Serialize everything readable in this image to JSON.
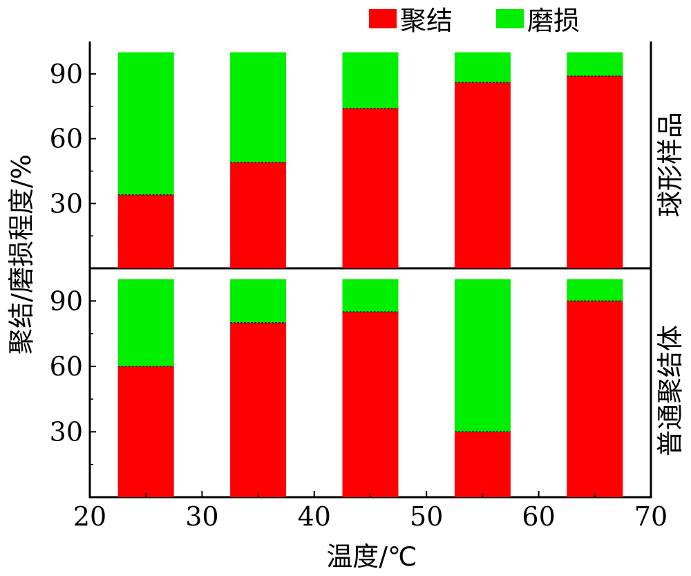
{
  "chart_data": {
    "type": "bar",
    "stacked": true,
    "xlabel": "温度/℃",
    "ylabel": "聚结/磨损程度/%",
    "xlim": [
      20,
      70
    ],
    "x_ticks": [
      "20",
      "30",
      "40",
      "50",
      "60",
      "70"
    ],
    "ylim": [
      0,
      105
    ],
    "y_ticks": [
      "30",
      "60",
      "90"
    ],
    "categories": [
      25,
      35,
      45,
      55,
      65
    ],
    "legend": {
      "position": "top",
      "entries": [
        {
          "name": "聚结",
          "color": "#ff0000"
        },
        {
          "name": "磨损",
          "color": "#00ee00"
        }
      ]
    },
    "panels": [
      {
        "label": "球形样品",
        "series": [
          {
            "name": "聚结",
            "values": [
              34,
              49,
              74,
              86,
              89
            ]
          },
          {
            "name": "磨损",
            "values": [
              66,
              51,
              26,
              14,
              11
            ]
          }
        ]
      },
      {
        "label": "普通聚结体",
        "series": [
          {
            "name": "聚结",
            "values": [
              60,
              80,
              85,
              30,
              90
            ]
          },
          {
            "name": "磨损",
            "values": [
              40,
              20,
              15,
              70,
              10
            ]
          }
        ]
      }
    ]
  }
}
